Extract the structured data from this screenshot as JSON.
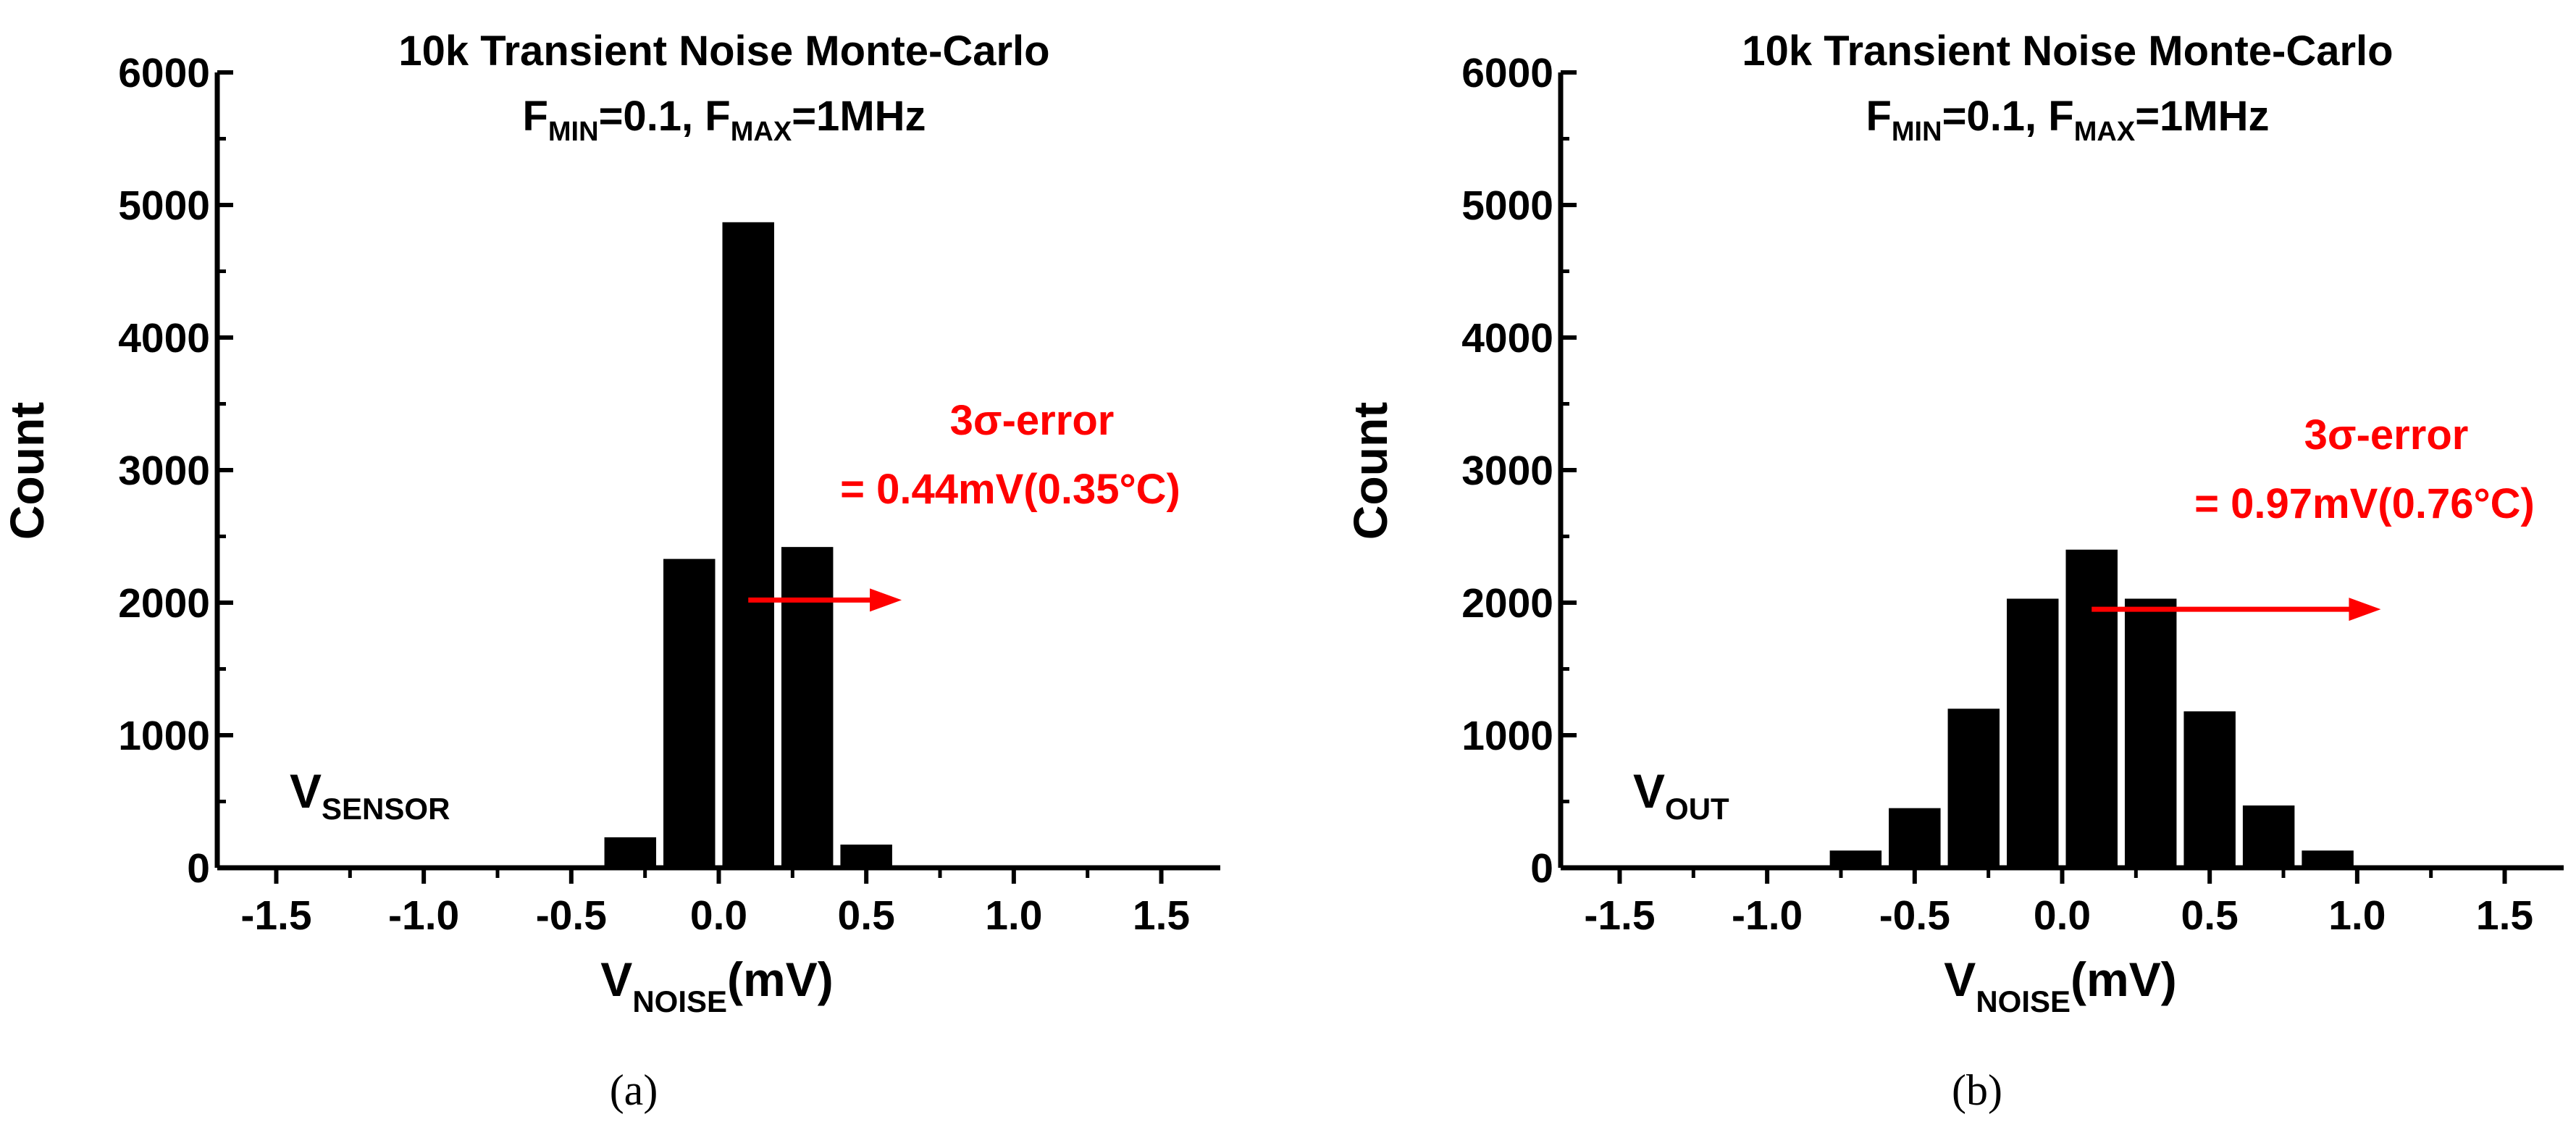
{
  "chart_data": [
    {
      "type": "bar",
      "panel_label": "(a)",
      "title_line1": "10k Transient Noise Monte-Carlo",
      "title_line2": {
        "f_min_main": "F",
        "f_min_sub": "MIN",
        "f_min_value": "=0.1, ",
        "f_max_main": "F",
        "f_max_sub": "MAX",
        "f_max_value": "=1MHz"
      },
      "ylabel": "Count",
      "xlabel": {
        "main": "V",
        "sub": "NOISE",
        "unit": "(mV)"
      },
      "signal_label": {
        "main": "V",
        "sub": "SENSOR"
      },
      "annotation": {
        "line1": "3σ-error",
        "line2": "= 0.44mV(0.35°C)",
        "color": "#ff0000"
      },
      "arrow": {
        "x_start": 0.1,
        "x_end": 0.62,
        "y": 2020
      },
      "bin_width": 0.2,
      "bins": [
        {
          "x": -0.3,
          "count": 230
        },
        {
          "x": -0.1,
          "count": 2330
        },
        {
          "x": 0.1,
          "count": 4870
        },
        {
          "x": 0.3,
          "count": 2420
        },
        {
          "x": 0.5,
          "count": 175
        }
      ],
      "xlim": [
        -1.7,
        1.7
      ],
      "ylim": [
        0,
        6000
      ],
      "x_ticks": [
        "-1.5",
        "-1.0",
        "-0.5",
        "0.0",
        "0.5",
        "1.0",
        "1.5"
      ],
      "y_ticks": [
        "0",
        "1000",
        "2000",
        "3000",
        "4000",
        "5000",
        "6000"
      ],
      "bar_color": "#000000"
    },
    {
      "type": "bar",
      "panel_label": "(b)",
      "title_line1": "10k Transient Noise Monte-Carlo",
      "title_line2": {
        "f_min_main": "F",
        "f_min_sub": "MIN",
        "f_min_value": "=0.1, ",
        "f_max_main": "F",
        "f_max_sub": "MAX",
        "f_max_value": "=1MHz"
      },
      "ylabel": "Count",
      "xlabel": {
        "main": "V",
        "sub": "NOISE",
        "unit": "(mV)"
      },
      "signal_label": {
        "main": "V",
        "sub": "OUT"
      },
      "annotation": {
        "line1": "3σ-error",
        "line2": "= 0.97mV(0.76°C)",
        "color": "#ff0000"
      },
      "arrow": {
        "x_start": 0.1,
        "x_end": 1.08,
        "y": 1950
      },
      "bin_width": 0.2,
      "bins": [
        {
          "x": -0.7,
          "count": 130
        },
        {
          "x": -0.5,
          "count": 450
        },
        {
          "x": -0.3,
          "count": 1200
        },
        {
          "x": -0.1,
          "count": 2030
        },
        {
          "x": 0.1,
          "count": 2400
        },
        {
          "x": 0.3,
          "count": 2030
        },
        {
          "x": 0.5,
          "count": 1180
        },
        {
          "x": 0.7,
          "count": 470
        },
        {
          "x": 0.9,
          "count": 130
        }
      ],
      "xlim": [
        -1.7,
        1.7
      ],
      "ylim": [
        0,
        6000
      ],
      "x_ticks": [
        "-1.5",
        "-1.0",
        "-0.5",
        "0.0",
        "0.5",
        "1.0",
        "1.5"
      ],
      "y_ticks": [
        "0",
        "1000",
        "2000",
        "3000",
        "4000",
        "5000",
        "6000"
      ],
      "bar_color": "#000000"
    }
  ]
}
